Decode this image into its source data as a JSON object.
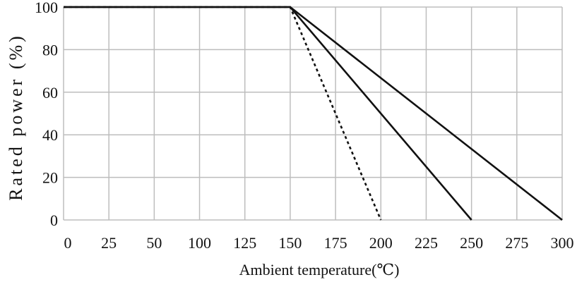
{
  "chart_data": {
    "type": "line",
    "title": "",
    "xlabel": "Ambient temperature(℃)",
    "ylabel": "Rated power (%)",
    "xlim": [
      0,
      300
    ],
    "ylim": [
      0,
      100
    ],
    "grid": true,
    "x_ticks": [
      "0",
      "25",
      "50",
      "100",
      "125",
      "150",
      "175",
      "200",
      "225",
      "250",
      "275",
      "300"
    ],
    "y_ticks": [
      "0",
      "20",
      "40",
      "60",
      "80",
      "100"
    ],
    "series": [
      {
        "style": "dashed",
        "points": [
          {
            "x": "0",
            "y": 100
          },
          {
            "x": "150",
            "y": 100
          },
          {
            "x": "200",
            "y": 0
          }
        ]
      },
      {
        "style": "solid",
        "points": [
          {
            "x": "0",
            "y": 100
          },
          {
            "x": "150",
            "y": 100
          },
          {
            "x": "250",
            "y": 0
          }
        ]
      },
      {
        "style": "solid",
        "points": [
          {
            "x": "0",
            "y": 100
          },
          {
            "x": "150",
            "y": 100
          },
          {
            "x": "300",
            "y": 0
          }
        ]
      }
    ],
    "colors": {
      "grid": "#bdbdbd",
      "line": "#111111",
      "text": "#111111"
    }
  }
}
